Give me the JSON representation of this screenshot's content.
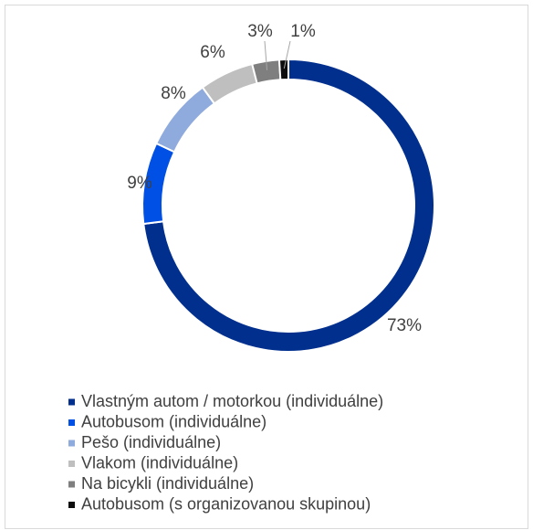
{
  "chart_data": {
    "type": "donut",
    "categories": [
      "Vlastným autom / motorkou (individuálne)",
      "Autobusom (individuálne)",
      "Pešo (individuálne)",
      "Vlakom (individuálne)",
      "Na bicykli (individuálne)",
      "Autobusom (s organizovanou skupinou)"
    ],
    "values": [
      73,
      9,
      8,
      6,
      3,
      1
    ],
    "value_labels": [
      "73%",
      "9%",
      "8%",
      "6%",
      "3%",
      "1%"
    ],
    "colors": [
      "#002f8e",
      "#0050e6",
      "#8faadc",
      "#bfbfbf",
      "#7f7f7f",
      "#0d0d0d"
    ],
    "legend": "bottom"
  }
}
